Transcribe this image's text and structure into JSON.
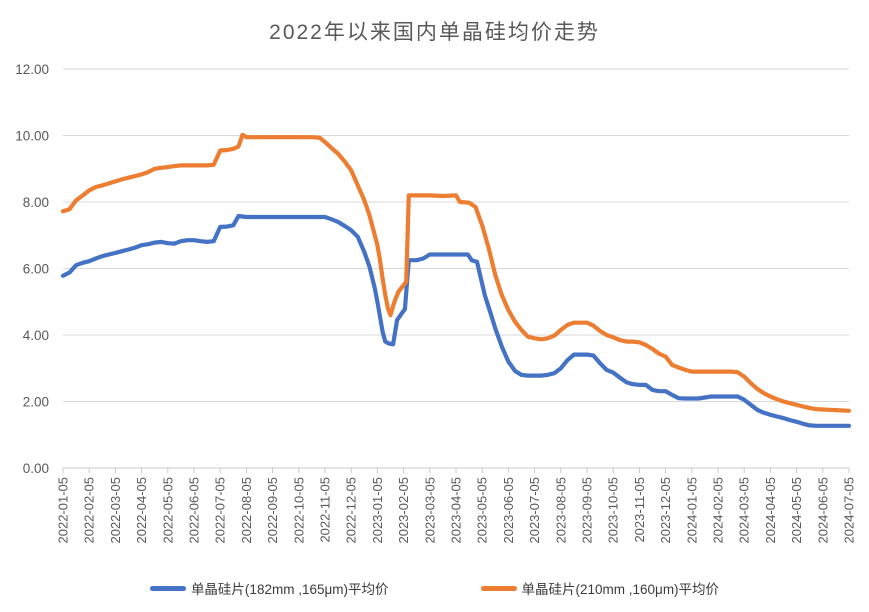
{
  "title": "2022年以来国内单晶硅均价走势",
  "colors": {
    "series_182": "#4472C4",
    "series_210": "#ED7D31",
    "gridline": "#D9D9D9",
    "axis": "#C9C9C9",
    "axis_text": "#595959",
    "title_text": "#595959",
    "legend_text": "#3B3B3B",
    "background": "#FFFFFF"
  },
  "chart_data": {
    "type": "line",
    "title": "2022年以来国内单晶硅均价走势",
    "xlabel": "",
    "ylabel": "",
    "ylim": [
      0,
      12
    ],
    "grid": "horizontal",
    "legend_position": "bottom",
    "x_unit": "months since 2022-01-05",
    "y_tick_labels": [
      "0.00",
      "2.00",
      "4.00",
      "6.00",
      "8.00",
      "10.00",
      "12.00"
    ],
    "y_ticks": [
      0,
      2,
      4,
      6,
      8,
      10,
      12
    ],
    "x_tick_labels": [
      "2022-01-05",
      "2022-02-05",
      "2022-03-05",
      "2022-04-05",
      "2022-05-05",
      "2022-06-05",
      "2022-07-05",
      "2022-08-05",
      "2022-09-05",
      "2022-10-05",
      "2022-11-05",
      "2022-12-05",
      "2023-01-05",
      "2023-02-05",
      "2023-03-05",
      "2023-04-05",
      "2023-05-05",
      "2023-06-05",
      "2023-07-05",
      "2023-08-05",
      "2023-09-05",
      "2023-10-05",
      "2023-11-05",
      "2023-12-05",
      "2024-01-05",
      "2024-02-05",
      "2024-03-05",
      "2024-04-05",
      "2024-05-05",
      "2024-06-05",
      "2024-07-05"
    ],
    "series": [
      {
        "name": "单晶硅片(182mm ,165μm)平均价",
        "color": "#4472C4",
        "points": [
          [
            0,
            5.78
          ],
          [
            0.25,
            5.88
          ],
          [
            0.5,
            6.1
          ],
          [
            0.75,
            6.17
          ],
          [
            1,
            6.22
          ],
          [
            1.25,
            6.3
          ],
          [
            1.5,
            6.37
          ],
          [
            1.75,
            6.42
          ],
          [
            2,
            6.47
          ],
          [
            2.25,
            6.52
          ],
          [
            2.5,
            6.57
          ],
          [
            2.75,
            6.63
          ],
          [
            3,
            6.7
          ],
          [
            3.25,
            6.73
          ],
          [
            3.5,
            6.78
          ],
          [
            3.75,
            6.8
          ],
          [
            4,
            6.76
          ],
          [
            4.25,
            6.75
          ],
          [
            4.5,
            6.82
          ],
          [
            4.75,
            6.85
          ],
          [
            5,
            6.85
          ],
          [
            5.25,
            6.82
          ],
          [
            5.5,
            6.8
          ],
          [
            5.75,
            6.82
          ],
          [
            6,
            7.25
          ],
          [
            6.25,
            7.26
          ],
          [
            6.5,
            7.3
          ],
          [
            6.7,
            7.58
          ],
          [
            7,
            7.55
          ],
          [
            7.5,
            7.55
          ],
          [
            8,
            7.55
          ],
          [
            8.5,
            7.55
          ],
          [
            9,
            7.55
          ],
          [
            9.5,
            7.55
          ],
          [
            10,
            7.55
          ],
          [
            10.25,
            7.48
          ],
          [
            10.5,
            7.4
          ],
          [
            10.75,
            7.28
          ],
          [
            11,
            7.15
          ],
          [
            11.25,
            6.95
          ],
          [
            11.5,
            6.5
          ],
          [
            11.7,
            6.05
          ],
          [
            11.9,
            5.4
          ],
          [
            12,
            5.0
          ],
          [
            12.1,
            4.55
          ],
          [
            12.2,
            4.1
          ],
          [
            12.3,
            3.8
          ],
          [
            12.45,
            3.74
          ],
          [
            12.6,
            3.72
          ],
          [
            12.75,
            4.45
          ],
          [
            12.9,
            4.62
          ],
          [
            13.05,
            4.78
          ],
          [
            13.2,
            6.25
          ],
          [
            13.5,
            6.25
          ],
          [
            13.75,
            6.3
          ],
          [
            14,
            6.42
          ],
          [
            14.5,
            6.42
          ],
          [
            15,
            6.42
          ],
          [
            15.45,
            6.42
          ],
          [
            15.6,
            6.25
          ],
          [
            15.8,
            6.2
          ],
          [
            15.95,
            5.7
          ],
          [
            16.1,
            5.2
          ],
          [
            16.3,
            4.7
          ],
          [
            16.5,
            4.2
          ],
          [
            16.75,
            3.65
          ],
          [
            17,
            3.2
          ],
          [
            17.25,
            2.92
          ],
          [
            17.5,
            2.8
          ],
          [
            17.75,
            2.78
          ],
          [
            18,
            2.78
          ],
          [
            18.25,
            2.78
          ],
          [
            18.5,
            2.8
          ],
          [
            18.75,
            2.85
          ],
          [
            19,
            3.0
          ],
          [
            19.25,
            3.24
          ],
          [
            19.5,
            3.41
          ],
          [
            19.75,
            3.41
          ],
          [
            20,
            3.41
          ],
          [
            20.25,
            3.38
          ],
          [
            20.5,
            3.15
          ],
          [
            20.75,
            2.95
          ],
          [
            21,
            2.87
          ],
          [
            21.25,
            2.72
          ],
          [
            21.5,
            2.58
          ],
          [
            21.75,
            2.52
          ],
          [
            22,
            2.5
          ],
          [
            22.25,
            2.5
          ],
          [
            22.5,
            2.35
          ],
          [
            22.75,
            2.31
          ],
          [
            23,
            2.31
          ],
          [
            23.25,
            2.2
          ],
          [
            23.5,
            2.1
          ],
          [
            23.75,
            2.09
          ],
          [
            24,
            2.09
          ],
          [
            24.25,
            2.09
          ],
          [
            24.5,
            2.12
          ],
          [
            24.75,
            2.15
          ],
          [
            25,
            2.15
          ],
          [
            25.5,
            2.15
          ],
          [
            25.75,
            2.15
          ],
          [
            26,
            2.05
          ],
          [
            26.25,
            1.9
          ],
          [
            26.5,
            1.75
          ],
          [
            26.75,
            1.66
          ],
          [
            27,
            1.6
          ],
          [
            27.25,
            1.55
          ],
          [
            27.5,
            1.5
          ],
          [
            27.75,
            1.44
          ],
          [
            28,
            1.39
          ],
          [
            28.25,
            1.33
          ],
          [
            28.5,
            1.28
          ],
          [
            28.75,
            1.27
          ],
          [
            29,
            1.27
          ],
          [
            29.5,
            1.27
          ],
          [
            30,
            1.27
          ]
        ]
      },
      {
        "name": "单晶硅片(210mm ,160μm)平均价",
        "color": "#ED7D31",
        "points": [
          [
            0,
            7.72
          ],
          [
            0.25,
            7.78
          ],
          [
            0.5,
            8.05
          ],
          [
            0.75,
            8.2
          ],
          [
            1,
            8.35
          ],
          [
            1.25,
            8.45
          ],
          [
            1.5,
            8.5
          ],
          [
            1.75,
            8.56
          ],
          [
            2,
            8.62
          ],
          [
            2.25,
            8.68
          ],
          [
            2.5,
            8.73
          ],
          [
            2.75,
            8.78
          ],
          [
            3,
            8.83
          ],
          [
            3.25,
            8.9
          ],
          [
            3.5,
            9.0
          ],
          [
            3.75,
            9.03
          ],
          [
            4,
            9.05
          ],
          [
            4.25,
            9.08
          ],
          [
            4.5,
            9.1
          ],
          [
            5,
            9.1
          ],
          [
            5.5,
            9.1
          ],
          [
            5.75,
            9.12
          ],
          [
            6,
            9.55
          ],
          [
            6.25,
            9.56
          ],
          [
            6.5,
            9.6
          ],
          [
            6.7,
            9.67
          ],
          [
            6.85,
            10.02
          ],
          [
            7,
            9.95
          ],
          [
            7.5,
            9.95
          ],
          [
            8,
            9.95
          ],
          [
            8.5,
            9.95
          ],
          [
            9,
            9.95
          ],
          [
            9.5,
            9.95
          ],
          [
            9.8,
            9.93
          ],
          [
            10,
            9.8
          ],
          [
            10.25,
            9.62
          ],
          [
            10.5,
            9.45
          ],
          [
            10.75,
            9.22
          ],
          [
            11,
            8.95
          ],
          [
            11.25,
            8.5
          ],
          [
            11.5,
            8.05
          ],
          [
            11.7,
            7.6
          ],
          [
            11.9,
            7.0
          ],
          [
            12,
            6.7
          ],
          [
            12.1,
            6.25
          ],
          [
            12.2,
            5.7
          ],
          [
            12.3,
            5.2
          ],
          [
            12.4,
            4.8
          ],
          [
            12.5,
            4.6
          ],
          [
            12.65,
            5.0
          ],
          [
            12.8,
            5.3
          ],
          [
            13,
            5.5
          ],
          [
            13.1,
            5.6
          ],
          [
            13.2,
            8.2
          ],
          [
            13.5,
            8.2
          ],
          [
            14,
            8.2
          ],
          [
            14.5,
            8.18
          ],
          [
            15,
            8.2
          ],
          [
            15.15,
            8.0
          ],
          [
            15.5,
            7.98
          ],
          [
            15.75,
            7.85
          ],
          [
            15.9,
            7.5
          ],
          [
            16,
            7.3
          ],
          [
            16.25,
            6.6
          ],
          [
            16.5,
            5.8
          ],
          [
            16.75,
            5.2
          ],
          [
            17,
            4.75
          ],
          [
            17.25,
            4.4
          ],
          [
            17.5,
            4.15
          ],
          [
            17.75,
            3.95
          ],
          [
            18,
            3.9
          ],
          [
            18.25,
            3.87
          ],
          [
            18.5,
            3.9
          ],
          [
            18.75,
            3.98
          ],
          [
            19,
            4.15
          ],
          [
            19.25,
            4.3
          ],
          [
            19.5,
            4.37
          ],
          [
            19.75,
            4.37
          ],
          [
            20,
            4.37
          ],
          [
            20.25,
            4.28
          ],
          [
            20.5,
            4.12
          ],
          [
            20.75,
            4.0
          ],
          [
            21,
            3.93
          ],
          [
            21.25,
            3.85
          ],
          [
            21.5,
            3.8
          ],
          [
            21.75,
            3.8
          ],
          [
            22,
            3.78
          ],
          [
            22.25,
            3.7
          ],
          [
            22.5,
            3.58
          ],
          [
            22.75,
            3.44
          ],
          [
            23,
            3.35
          ],
          [
            23.25,
            3.1
          ],
          [
            23.5,
            3.02
          ],
          [
            23.75,
            2.95
          ],
          [
            24,
            2.9
          ],
          [
            24.5,
            2.9
          ],
          [
            25,
            2.9
          ],
          [
            25.5,
            2.9
          ],
          [
            25.75,
            2.88
          ],
          [
            26,
            2.75
          ],
          [
            26.25,
            2.55
          ],
          [
            26.5,
            2.38
          ],
          [
            26.75,
            2.25
          ],
          [
            27,
            2.15
          ],
          [
            27.25,
            2.07
          ],
          [
            27.5,
            2.0
          ],
          [
            27.75,
            1.95
          ],
          [
            28,
            1.9
          ],
          [
            28.25,
            1.85
          ],
          [
            28.5,
            1.8
          ],
          [
            28.75,
            1.77
          ],
          [
            29,
            1.76
          ],
          [
            29.25,
            1.75
          ],
          [
            29.5,
            1.74
          ],
          [
            30,
            1.72
          ]
        ]
      }
    ]
  }
}
